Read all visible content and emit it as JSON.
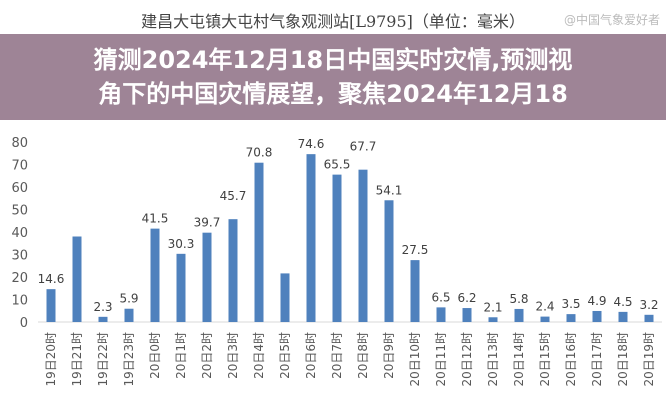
{
  "chart_data": {
    "type": "bar",
    "title": "建昌大屯镇大屯村气象观测站[L9795]（单位：毫米）",
    "xlabel": "",
    "ylabel": "",
    "ylim": [
      0,
      80
    ],
    "yticks": [
      0,
      10,
      20,
      30,
      40,
      50,
      60,
      70,
      80
    ],
    "grid": false,
    "color": "#4f81bd",
    "categories": [
      "19日20时",
      "19日21时",
      "19日22时",
      "19日23时",
      "20日0时",
      "20日1时",
      "20日2时",
      "20日3时",
      "20日4时",
      "20日5时",
      "20日6时",
      "20日7时",
      "20日8时",
      "20日9时",
      "20日10时",
      "20日11时",
      "20日12时",
      "20日13时",
      "20日14时",
      "20日15时",
      "20日16时",
      "20日17时",
      "20日18时",
      "20日19时"
    ],
    "values": [
      14.6,
      38,
      2.3,
      5.9,
      41.5,
      30.3,
      39.7,
      45.7,
      70.8,
      21.6,
      74.6,
      65.5,
      67.7,
      54.1,
      27.5,
      6.5,
      6.2,
      2.1,
      5.8,
      2.4,
      3.5,
      4.9,
      4.5,
      3.2
    ],
    "labels": [
      "14.6",
      "",
      "2.3",
      "5.9",
      "41.5",
      "30.3",
      "39.7",
      "45.7",
      "70.8",
      "",
      "74.6",
      "65.5",
      "67.7",
      "54.1",
      "27.5",
      "6.5",
      "6.2",
      "2.1",
      "5.8",
      "2.4",
      "3.5",
      "4.9",
      "4.5",
      "3.2"
    ]
  },
  "overlay": {
    "line1": "猜测2024年12月18日中国实时灾情,预测视",
    "line2": "角下的中国灾情展望，聚焦2024年12月18"
  },
  "watermark": "@中国气象爱好者"
}
